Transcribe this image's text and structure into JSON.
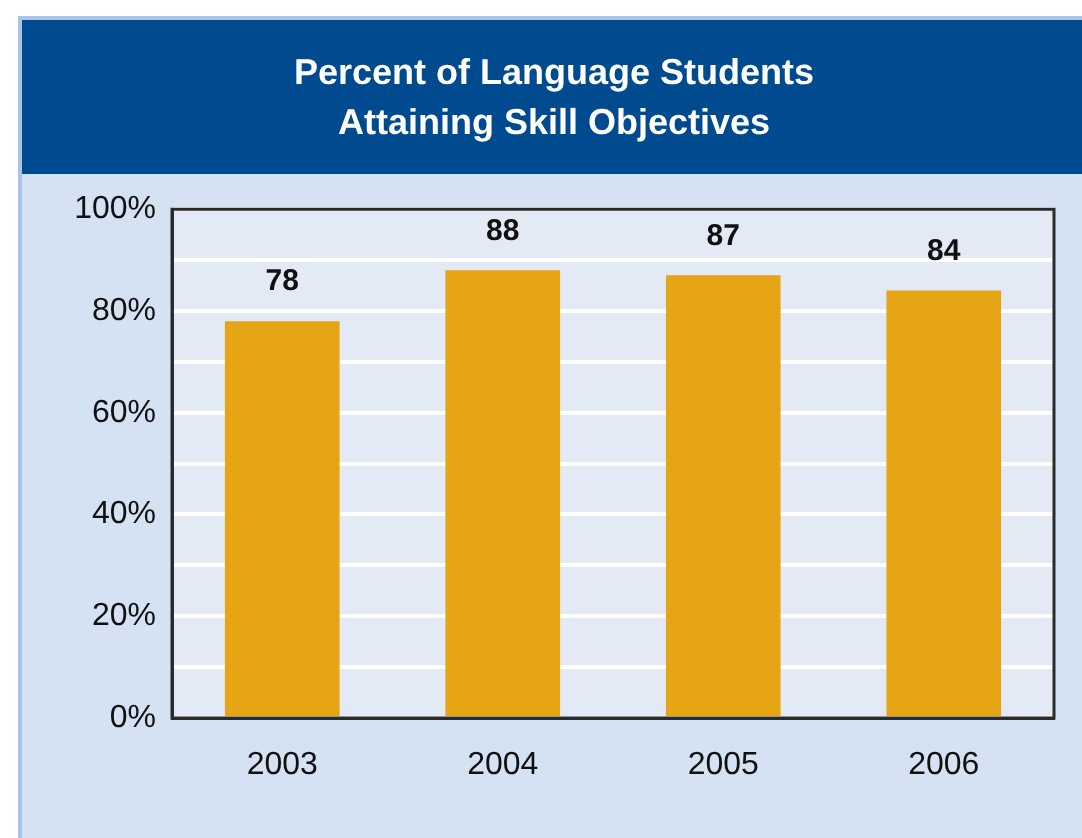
{
  "chart_data": {
    "type": "bar",
    "title": "Percent of Language Students Attaining Skill Objectives",
    "categories": [
      "2003",
      "2004",
      "2005",
      "2006"
    ],
    "values": [
      78,
      88,
      87,
      84
    ],
    "color": "#e6a514",
    "ylim": [
      0,
      100
    ],
    "yticks": [
      {
        "value": 0,
        "label": "0%"
      },
      {
        "value": 10,
        "label": null
      },
      {
        "value": 20,
        "label": "20%"
      },
      {
        "value": 30,
        "label": null
      },
      {
        "value": 40,
        "label": "40%"
      },
      {
        "value": 50,
        "label": null
      },
      {
        "value": 60,
        "label": "60%"
      },
      {
        "value": 70,
        "label": null
      },
      {
        "value": 80,
        "label": "80%"
      },
      {
        "value": 90,
        "label": null
      },
      {
        "value": 100,
        "label": "100%"
      }
    ],
    "grid": "y",
    "data_labels": true
  }
}
